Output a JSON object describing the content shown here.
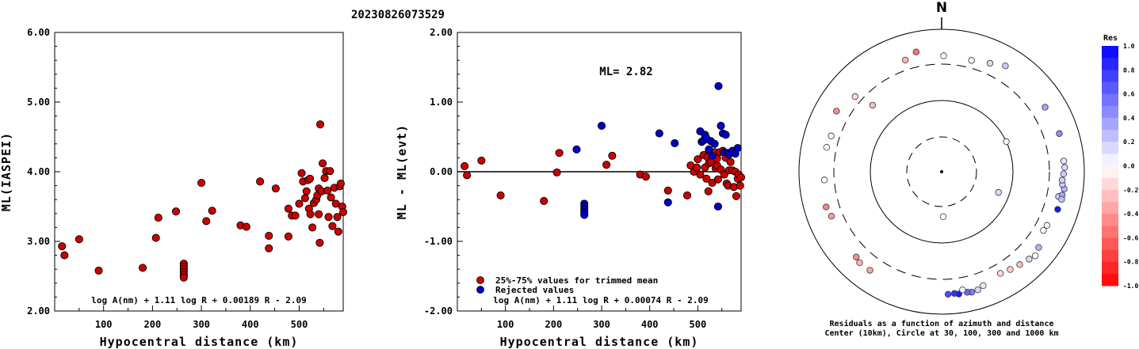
{
  "title": "20230826073529",
  "chart_data": [
    {
      "type": "scatter",
      "ylabel": "ML(IASPEI)",
      "xlabel": "Hypocentral distance (km)",
      "xlim": [
        0,
        590
      ],
      "ylim": [
        2.0,
        6.0
      ],
      "x_ticks": [
        "100",
        "200",
        "300",
        "400",
        "500"
      ],
      "y_ticks": [
        "2.00",
        "3.00",
        "4.00",
        "5.00",
        "6.00"
      ],
      "formula": "log A(nm) + 1.11 log R + 0.00189 R - 2.09",
      "series": [
        {
          "color": "#cc0000",
          "points": [
            [
              15,
              2.93
            ],
            [
              20,
              2.8
            ],
            [
              50,
              3.03
            ],
            [
              90,
              2.58
            ],
            [
              180,
              2.62
            ],
            [
              207,
              3.05
            ],
            [
              212,
              3.34
            ],
            [
              248,
              3.43
            ],
            [
              264,
              2.68
            ],
            [
              264,
              2.64
            ],
            [
              264,
              2.6
            ],
            [
              264,
              2.56
            ],
            [
              264,
              2.52
            ],
            [
              264,
              2.48
            ],
            [
              300,
              3.84
            ],
            [
              310,
              3.29
            ],
            [
              322,
              3.44
            ],
            [
              380,
              3.23
            ],
            [
              392,
              3.21
            ],
            [
              420,
              3.86
            ],
            [
              438,
              2.9
            ],
            [
              438,
              3.08
            ],
            [
              452,
              3.76
            ],
            [
              478,
              3.07
            ],
            [
              478,
              3.47
            ],
            [
              485,
              3.37
            ],
            [
              492,
              3.37
            ],
            [
              500,
              3.54
            ],
            [
              505,
              3.98
            ],
            [
              508,
              3.86
            ],
            [
              512,
              3.62
            ],
            [
              515,
              3.72
            ],
            [
              518,
              3.88
            ],
            [
              520,
              3.47
            ],
            [
              522,
              3.9
            ],
            [
              523,
              3.39
            ],
            [
              527,
              3.2
            ],
            [
              530,
              3.55
            ],
            [
              535,
              3.6
            ],
            [
              537,
              3.66
            ],
            [
              540,
              3.76
            ],
            [
              540,
              3.39
            ],
            [
              542,
              2.98
            ],
            [
              543,
              4.68
            ],
            [
              546,
              3.72
            ],
            [
              548,
              4.12
            ],
            [
              552,
              3.91
            ],
            [
              555,
              4.01
            ],
            [
              558,
              3.73
            ],
            [
              560,
              3.35
            ],
            [
              563,
              4.01
            ],
            [
              565,
              3.63
            ],
            [
              568,
              3.22
            ],
            [
              572,
              3.77
            ],
            [
              575,
              3.54
            ],
            [
              578,
              3.35
            ],
            [
              580,
              3.14
            ],
            [
              583,
              3.79
            ],
            [
              585,
              3.83
            ],
            [
              588,
              3.5
            ],
            [
              590,
              3.42
            ]
          ]
        }
      ]
    },
    {
      "type": "scatter",
      "ylabel": "ML - ML(evt)",
      "xlabel": "Hypocentral distance (km)",
      "xlim": [
        0,
        590
      ],
      "ylim": [
        -2.0,
        2.0
      ],
      "x_ticks": [
        "100",
        "200",
        "300",
        "400",
        "500"
      ],
      "y_ticks": [
        "-2.00",
        "-1.00",
        "0.00",
        "1.00",
        "2.00"
      ],
      "reference_line": 0.0,
      "annotation": "ML= 2.82",
      "formula": "log A(nm) + 1.11 log R + 0.00074 R - 2.09",
      "legend": [
        {
          "label": "25%-75% values for trimmed mean",
          "color": "#cc0000"
        },
        {
          "label": "Rejected values",
          "color": "#0000cc"
        }
      ],
      "series": [
        {
          "name": "25%-75% values for trimmed mean",
          "color": "#cc0000",
          "points": [
            [
              15,
              0.08
            ],
            [
              20,
              -0.05
            ],
            [
              50,
              0.16
            ],
            [
              90,
              -0.34
            ],
            [
              180,
              -0.42
            ],
            [
              207,
              -0.01
            ],
            [
              212,
              0.27
            ],
            [
              310,
              0.1
            ],
            [
              322,
              0.23
            ],
            [
              380,
              -0.04
            ],
            [
              392,
              -0.07
            ],
            [
              438,
              -0.27
            ],
            [
              478,
              -0.34
            ],
            [
              485,
              0.09
            ],
            [
              492,
              0.0
            ],
            [
              498,
              0.06
            ],
            [
              500,
              0.18
            ],
            [
              505,
              -0.04
            ],
            [
              512,
              0.24
            ],
            [
              515,
              0.06
            ],
            [
              518,
              -0.1
            ],
            [
              520,
              0.21
            ],
            [
              522,
              -0.28
            ],
            [
              523,
              0.12
            ],
            [
              527,
              0.14
            ],
            [
              530,
              -0.16
            ],
            [
              535,
              0.28
            ],
            [
              537,
              0.05
            ],
            [
              540,
              0.19
            ],
            [
              540,
              0.09
            ],
            [
              542,
              -0.11
            ],
            [
              546,
              0.28
            ],
            [
              548,
              0.03
            ],
            [
              552,
              0.3
            ],
            [
              555,
              -0.04
            ],
            [
              558,
              0.2
            ],
            [
              560,
              -0.17
            ],
            [
              563,
              -0.2
            ],
            [
              565,
              0.02
            ],
            [
              568,
              0.14
            ],
            [
              572,
              0.02
            ],
            [
              575,
              -0.22
            ],
            [
              578,
              0.0
            ],
            [
              580,
              -0.35
            ],
            [
              583,
              -0.1
            ],
            [
              585,
              -0.04
            ],
            [
              588,
              -0.2
            ],
            [
              590,
              -0.08
            ]
          ]
        },
        {
          "name": "Rejected values",
          "color": "#0000cc",
          "points": [
            [
              248,
              0.32
            ],
            [
              264,
              -0.46
            ],
            [
              264,
              -0.5
            ],
            [
              264,
              -0.54
            ],
            [
              264,
              -0.58
            ],
            [
              264,
              -0.62
            ],
            [
              300,
              0.66
            ],
            [
              420,
              0.55
            ],
            [
              438,
              -0.44
            ],
            [
              452,
              0.41
            ],
            [
              505,
              0.58
            ],
            [
              508,
              0.43
            ],
            [
              512,
              0.45
            ],
            [
              515,
              0.53
            ],
            [
              518,
              0.48
            ],
            [
              523,
              0.32
            ],
            [
              527,
              0.44
            ],
            [
              530,
              0.23
            ],
            [
              535,
              0.4
            ],
            [
              542,
              -0.5
            ],
            [
              543,
              1.23
            ],
            [
              548,
              0.66
            ],
            [
              552,
              0.55
            ],
            [
              555,
              0.28
            ],
            [
              558,
              0.53
            ],
            [
              563,
              0.27
            ],
            [
              565,
              0.25
            ],
            [
              572,
              0.3
            ],
            [
              578,
              0.26
            ],
            [
              583,
              0.34
            ]
          ]
        }
      ]
    },
    {
      "type": "scatter",
      "subtype": "polar",
      "north_label": "N",
      "caption_line1": "Residuals as a function of azimuth and distance",
      "caption_line2": "Center (10km), Circle at 30, 100, 300 and 1000 km",
      "rings_km": [
        10,
        30,
        100,
        300,
        1000
      ],
      "colorbar": {
        "title": "Res",
        "ticks": [
          "1.0",
          "0.8",
          "0.6",
          "0.4",
          "0.2",
          "0.0",
          "-0.2",
          "-0.4",
          "-0.6",
          "-0.8",
          "-1.0"
        ],
        "positive_color": "#0000ff",
        "negative_color": "#ff0000"
      },
      "points_az_dist_res": [
        [
          1,
          400,
          0.0
        ],
        [
          342,
          420,
          -0.3
        ],
        [
          348,
          500,
          -0.55
        ],
        [
          24,
          440,
          0.15
        ],
        [
          31,
          520,
          0.2
        ],
        [
          15,
          390,
          -0.05
        ],
        [
          314,
          210,
          -0.25
        ],
        [
          300,
          480,
          -0.45
        ],
        [
          311,
          380,
          -0.15
        ],
        [
          288,
          400,
          -0.05
        ],
        [
          102,
          450,
          0.2
        ],
        [
          98,
          520,
          0.3
        ],
        [
          101,
          505,
          0.35
        ],
        [
          103,
          510,
          0.25
        ],
        [
          96,
          480,
          0.2
        ],
        [
          94,
          470,
          0.2
        ],
        [
          91,
          490,
          0.2
        ],
        [
          88,
          510,
          0.15
        ],
        [
          85,
          500,
          0.1
        ],
        [
          58,
          490,
          0.35
        ],
        [
          72,
          520,
          0.45
        ],
        [
          120,
          420,
          0.0
        ],
        [
          160,
          480,
          0.1
        ],
        [
          163,
          520,
          0.15
        ],
        [
          166,
          530,
          0.5
        ],
        [
          168,
          515,
          0.6
        ],
        [
          172,
          520,
          0.9
        ],
        [
          174,
          500,
          0.8
        ],
        [
          177,
          505,
          0.7
        ],
        [
          170,
          460,
          0.05
        ],
        [
          150,
          420,
          -0.15
        ],
        [
          145,
          450,
          -0.2
        ],
        [
          140,
          480,
          -0.25
        ],
        [
          135,
          520,
          0.15
        ],
        [
          128,
          510,
          0.3
        ],
        [
          132,
          560,
          0.0
        ],
        [
          108,
          490,
          0.9
        ],
        [
          117,
          430,
          0.05
        ],
        [
          216,
          490,
          -0.35
        ],
        [
          222,
          500,
          -0.3
        ],
        [
          225,
          470,
          -0.45
        ],
        [
          253,
          470,
          -0.5
        ],
        [
          248,
          440,
          -0.4
        ],
        [
          282,
          420,
          0.0
        ],
        [
          266,
          420,
          0.0
        ],
        [
          65,
          100,
          0.05
        ],
        [
          110,
          70,
          0.15
        ],
        [
          178,
          42,
          0.0
        ]
      ]
    }
  ]
}
